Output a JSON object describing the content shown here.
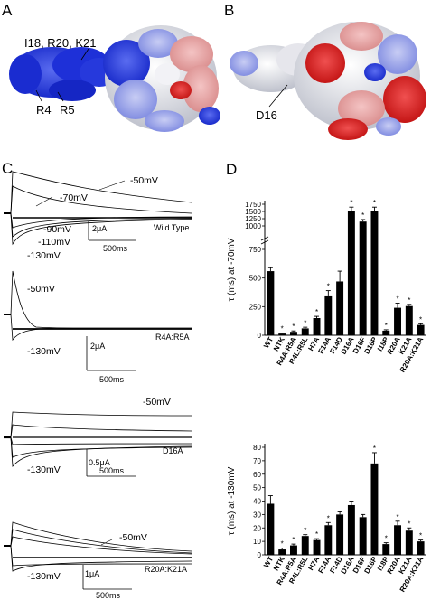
{
  "panelA": {
    "letter": "A",
    "labels": {
      "top": "I18, R20, K21",
      "r4": "R4",
      "r5": "R5"
    }
  },
  "panelB": {
    "letter": "B",
    "labels": {
      "d16": "D16"
    }
  },
  "panelC": {
    "letter": "C",
    "traces": [
      {
        "name": "Wild Type",
        "voltages": [
          "-50mV",
          "-70mV",
          "-90mV",
          "-110mV",
          "-130mV"
        ],
        "scale_current": "2μA",
        "scale_time": "500ms"
      },
      {
        "name": "R4A:R5A",
        "voltages": [
          "-50mV",
          "-130mV"
        ],
        "scale_current": "2μA",
        "scale_time": "500ms"
      },
      {
        "name": "D16A",
        "voltages": [
          "-50mV",
          "-130mV"
        ],
        "scale_current": "0.5μA",
        "scale_time": "500ms"
      },
      {
        "name": "R20A:K21A",
        "voltages": [
          "-50mV",
          "-130mV"
        ],
        "scale_current": "1μA",
        "scale_time": "500ms"
      }
    ]
  },
  "panelD": {
    "letter": "D"
  },
  "colors": {
    "blue": "#1c2fd6",
    "red": "#d81818",
    "white": "#eeeeee",
    "bar": "#000000"
  },
  "chart_data": [
    {
      "type": "bar",
      "title": "",
      "ylabel": "τ (ms) at -70mV",
      "xlabel": "",
      "categories": [
        "WT",
        "NTK",
        "R4A:R5A",
        "R4L:R5L",
        "H7A",
        "F14A",
        "F14D",
        "D16A",
        "D16F",
        "D16P",
        "I18P",
        "R20A",
        "K21A",
        "R20A:K21A"
      ],
      "values": [
        560,
        15,
        30,
        60,
        150,
        340,
        470,
        1500,
        1150,
        1500,
        40,
        240,
        255,
        90
      ],
      "errors": [
        30,
        5,
        8,
        10,
        15,
        50,
        90,
        150,
        70,
        150,
        8,
        40,
        15,
        10
      ],
      "significant": [
        false,
        true,
        true,
        true,
        true,
        true,
        false,
        true,
        true,
        true,
        true,
        true,
        true,
        true
      ],
      "yticks": [
        "0",
        "250",
        "500",
        "750",
        "1000",
        "1250",
        "1500",
        "1750"
      ],
      "ylim": [
        0,
        1750
      ],
      "axis_break": true
    },
    {
      "type": "bar",
      "title": "",
      "ylabel": "τ (ms) at -130mV",
      "xlabel": "",
      "categories": [
        "WT",
        "NTK",
        "R4A:R5A",
        "R4L:R5L",
        "H7A",
        "F14A",
        "F14D",
        "D16A",
        "D16F",
        "D16P",
        "I18P",
        "R20A",
        "K21A",
        "R20A:K21A"
      ],
      "values": [
        38,
        4,
        7,
        14,
        11,
        22,
        30,
        37,
        28,
        68,
        8,
        22,
        18,
        10
      ],
      "errors": [
        6,
        1,
        1,
        1,
        1,
        2,
        2,
        3,
        2,
        8,
        1,
        3,
        2,
        1
      ],
      "significant": [
        false,
        true,
        true,
        true,
        true,
        true,
        false,
        false,
        false,
        true,
        true,
        true,
        true,
        true
      ],
      "yticks": [
        "0",
        "10",
        "20",
        "30",
        "40",
        "50",
        "60",
        "70",
        "80"
      ],
      "ylim": [
        0,
        80
      ]
    }
  ]
}
